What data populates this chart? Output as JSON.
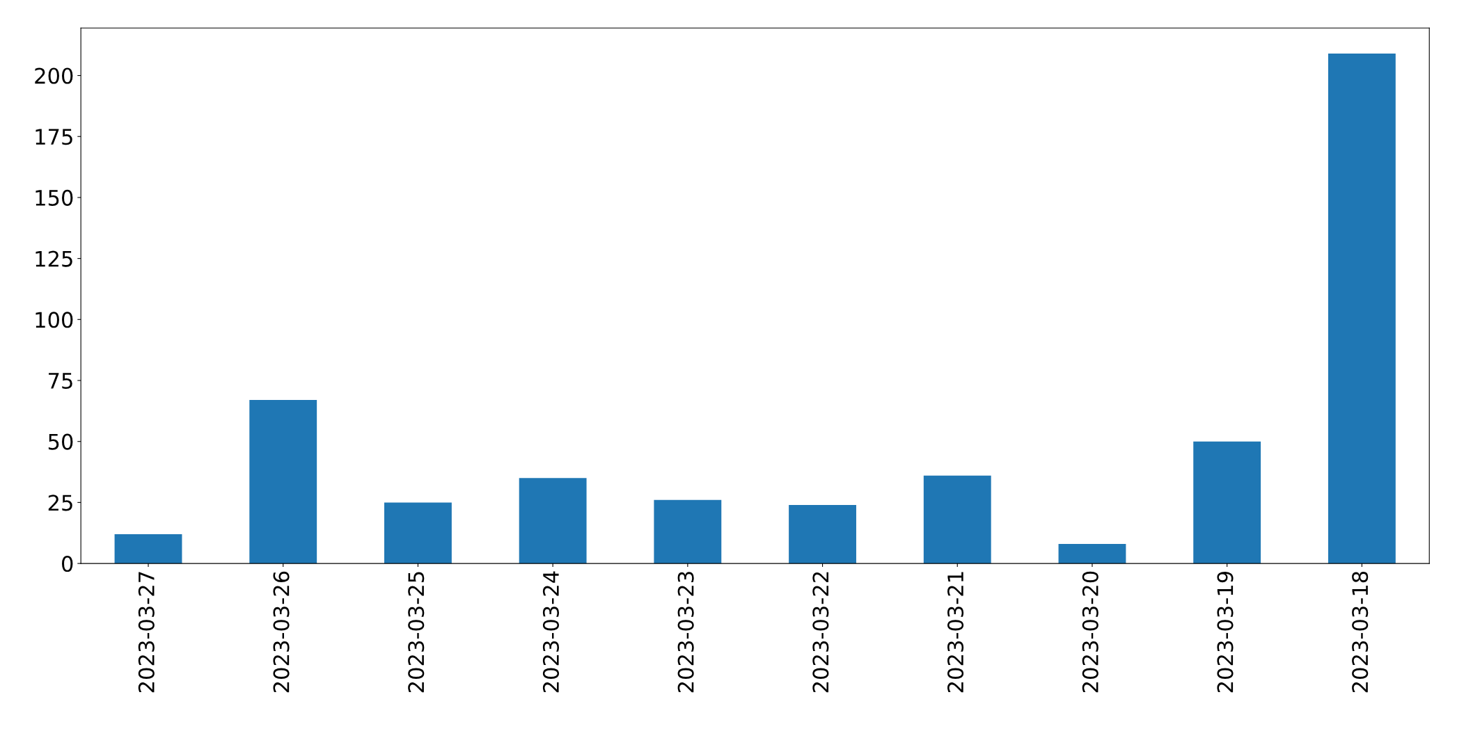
{
  "chart_data": {
    "type": "bar",
    "categories": [
      "2023-03-27",
      "2023-03-26",
      "2023-03-25",
      "2023-03-24",
      "2023-03-23",
      "2023-03-22",
      "2023-03-21",
      "2023-03-20",
      "2023-03-19",
      "2023-03-18"
    ],
    "values": [
      12,
      67,
      25,
      35,
      26,
      24,
      36,
      8,
      50,
      209
    ],
    "color": "#1f77b4",
    "ylim": [
      0,
      219.45
    ],
    "yticks": [
      0,
      25,
      50,
      75,
      100,
      125,
      150,
      175,
      200
    ],
    "grid": false,
    "legend": false
  }
}
